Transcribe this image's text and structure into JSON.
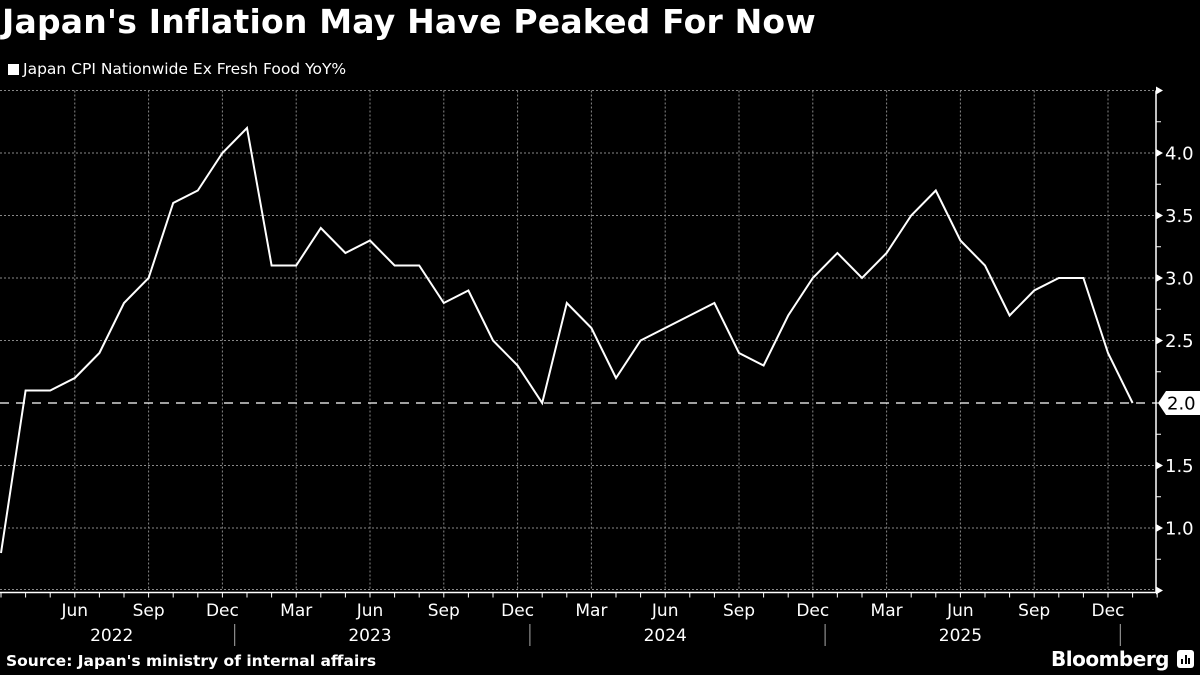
{
  "title": "Japan's Inflation May Have Peaked For Now",
  "legend": {
    "label": "Japan CPI Nationwide Ex Fresh Food YoY%",
    "color": "#ffffff"
  },
  "source": "Source: Japan's ministry of internal affairs",
  "brand": "Bloomberg",
  "colors": {
    "background": "#000000",
    "line": "#ffffff",
    "grid": "#888888",
    "text": "#ffffff"
  },
  "chart_data": {
    "type": "line",
    "title": "Japan's Inflation May Have Peaked For Now",
    "xlabel": "",
    "ylabel": "",
    "ylim": [
      0.5,
      4.5
    ],
    "yticks": [
      1.0,
      1.5,
      2.0,
      2.5,
      3.0,
      3.5,
      4.0
    ],
    "ytick_labels": [
      "1.0",
      "1.5",
      "2.0",
      "2.5",
      "3.0",
      "3.5",
      "4.0"
    ],
    "y_axis_position": "right",
    "grid": true,
    "reference_line": {
      "value": 2.0,
      "style": "dashed",
      "label": "2.0"
    },
    "x_tick_labels": [
      {
        "month_index": 3,
        "label": "Jun"
      },
      {
        "month_index": 6,
        "label": "Sep"
      },
      {
        "month_index": 9,
        "label": "Dec"
      },
      {
        "month_index": 12,
        "label": "Mar"
      },
      {
        "month_index": 15,
        "label": "Jun"
      },
      {
        "month_index": 18,
        "label": "Sep"
      },
      {
        "month_index": 21,
        "label": "Dec"
      },
      {
        "month_index": 24,
        "label": "Mar"
      },
      {
        "month_index": 27,
        "label": "Jun"
      },
      {
        "month_index": 30,
        "label": "Sep"
      },
      {
        "month_index": 33,
        "label": "Dec"
      },
      {
        "month_index": 36,
        "label": "Mar"
      },
      {
        "month_index": 39,
        "label": "Jun"
      },
      {
        "month_index": 42,
        "label": "Sep"
      },
      {
        "month_index": 45,
        "label": "Dec"
      }
    ],
    "year_labels": [
      {
        "month_index": 4.5,
        "label": "2022"
      },
      {
        "month_index": 15,
        "label": "2023"
      },
      {
        "month_index": 27,
        "label": "2024"
      },
      {
        "month_index": 39,
        "label": "2025"
      }
    ],
    "year_dividers": [
      9.5,
      21.5,
      33.5,
      45.5
    ],
    "legend_position": "top-left",
    "x": [
      "Mar 2022",
      "Apr 2022",
      "May 2022",
      "Jun 2022",
      "Jul 2022",
      "Aug 2022",
      "Sep 2022",
      "Oct 2022",
      "Nov 2022",
      "Dec 2022",
      "Jan 2023",
      "Feb 2023",
      "Mar 2023",
      "Apr 2023",
      "May 2023",
      "Jun 2023",
      "Jul 2023",
      "Aug 2023",
      "Sep 2023",
      "Oct 2023",
      "Nov 2023",
      "Dec 2023",
      "Jan 2024",
      "Feb 2024",
      "Mar 2024",
      "Apr 2024",
      "May 2024",
      "Jun 2024",
      "Jul 2024",
      "Aug 2024",
      "Sep 2024",
      "Oct 2024",
      "Nov 2024",
      "Dec 2024",
      "Jan 2025",
      "Feb 2025",
      "Mar 2025",
      "Apr 2025",
      "May 2025",
      "Jun 2025",
      "Jul 2025",
      "Aug 2025",
      "Sep 2025",
      "Oct 2025",
      "Nov 2025",
      "Dec 2025",
      "Jan 2026"
    ],
    "series": [
      {
        "name": "Japan CPI Nationwide Ex Fresh Food YoY%",
        "values": [
          0.8,
          2.1,
          2.1,
          2.2,
          2.4,
          2.8,
          3.0,
          3.6,
          3.7,
          4.0,
          4.2,
          3.1,
          3.1,
          3.4,
          3.2,
          3.3,
          3.1,
          3.1,
          2.8,
          2.9,
          2.5,
          2.3,
          2.0,
          2.8,
          2.6,
          2.2,
          2.5,
          2.6,
          2.7,
          2.8,
          2.4,
          2.3,
          2.7,
          3.0,
          3.2,
          3.0,
          3.2,
          3.5,
          3.7,
          3.3,
          3.1,
          2.7,
          2.9,
          3.0,
          3.0,
          2.4,
          2.0
        ]
      }
    ]
  }
}
